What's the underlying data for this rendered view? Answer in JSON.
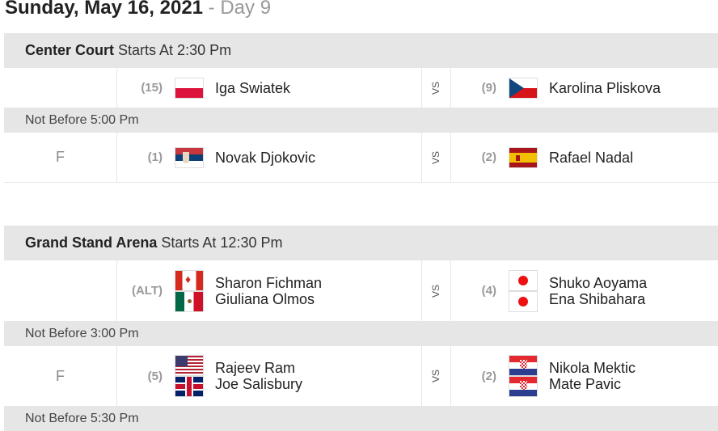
{
  "header": {
    "date": "Sunday, May 16, 2021",
    "day": " - Day 9"
  },
  "courts": [
    {
      "name": "Center Court",
      "starts": "Starts At 2:30 Pm",
      "matches": [
        {
          "not_before": "",
          "status": "",
          "vs": "VS",
          "p1": {
            "seed": "(15)",
            "flags": [
              "pl"
            ],
            "names": [
              "Iga Swiatek"
            ]
          },
          "p2": {
            "seed": "(9)",
            "flags": [
              "cz"
            ],
            "names": [
              "Karolina Pliskova"
            ]
          }
        },
        {
          "not_before": "Not Before 5:00 Pm",
          "status": "F",
          "vs": "VS",
          "p1": {
            "seed": "(1)",
            "flags": [
              "rs"
            ],
            "names": [
              "Novak Djokovic"
            ]
          },
          "p2": {
            "seed": "(2)",
            "flags": [
              "es"
            ],
            "names": [
              "Rafael Nadal"
            ]
          }
        }
      ]
    },
    {
      "name": "Grand Stand Arena",
      "starts": "Starts At 12:30 Pm",
      "matches": [
        {
          "not_before": "",
          "status": "",
          "vs": "VS",
          "p1": {
            "seed": "(ALT)",
            "flags": [
              "ca",
              "mx"
            ],
            "names": [
              "Sharon Fichman",
              "Giuliana Olmos"
            ]
          },
          "p2": {
            "seed": "(4)",
            "flags": [
              "jp",
              "jp"
            ],
            "names": [
              "Shuko Aoyama",
              "Ena Shibahara"
            ]
          }
        },
        {
          "not_before": "Not Before 3:00 Pm",
          "status": "F",
          "vs": "VS",
          "p1": {
            "seed": "(5)",
            "flags": [
              "us",
              "gb"
            ],
            "names": [
              "Rajeev Ram",
              "Joe Salisbury"
            ]
          },
          "p2": {
            "seed": "(2)",
            "flags": [
              "hr",
              "hr"
            ],
            "names": [
              "Nikola Mektic",
              "Mate Pavic"
            ]
          }
        }
      ],
      "trailing_note": "Not Before 5:30 Pm"
    }
  ]
}
